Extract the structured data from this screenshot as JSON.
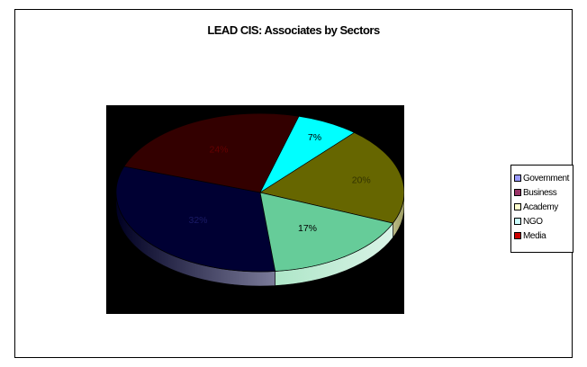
{
  "chart_data": {
    "type": "pie",
    "title": "LEAD CIS: Associates by Sectors",
    "categories": [
      "Government",
      "Business",
      "Academy",
      "NGO",
      "Media"
    ],
    "values": [
      32,
      24,
      20,
      7,
      17
    ],
    "data_labels": [
      "32%",
      "24%",
      "20%",
      "7%",
      "17%"
    ],
    "legend_placement": "right",
    "slices": [
      {
        "label": "Government",
        "pct_text": "32%",
        "value": 32,
        "color": "#000033"
      },
      {
        "label": "Business",
        "pct_text": "24%",
        "value": 24,
        "color": "#330000"
      },
      {
        "label": "Academy",
        "pct_text": "20%",
        "value": 20,
        "color": "#666600"
      },
      {
        "label": "NGO",
        "pct_text": "7%",
        "value": 7,
        "color": "#00FFFF"
      },
      {
        "label": "",
        "pct_text": "17%",
        "value": 17,
        "color": "#66CC99"
      }
    ],
    "legend": [
      {
        "label": "Government",
        "color": "#9999FF"
      },
      {
        "label": "Business",
        "color": "#993366"
      },
      {
        "label": "Academy",
        "color": "#FFFFCC"
      },
      {
        "label": "NGO",
        "color": "#CCFFFF"
      },
      {
        "label": "Media",
        "color": "#CC0000"
      }
    ]
  }
}
